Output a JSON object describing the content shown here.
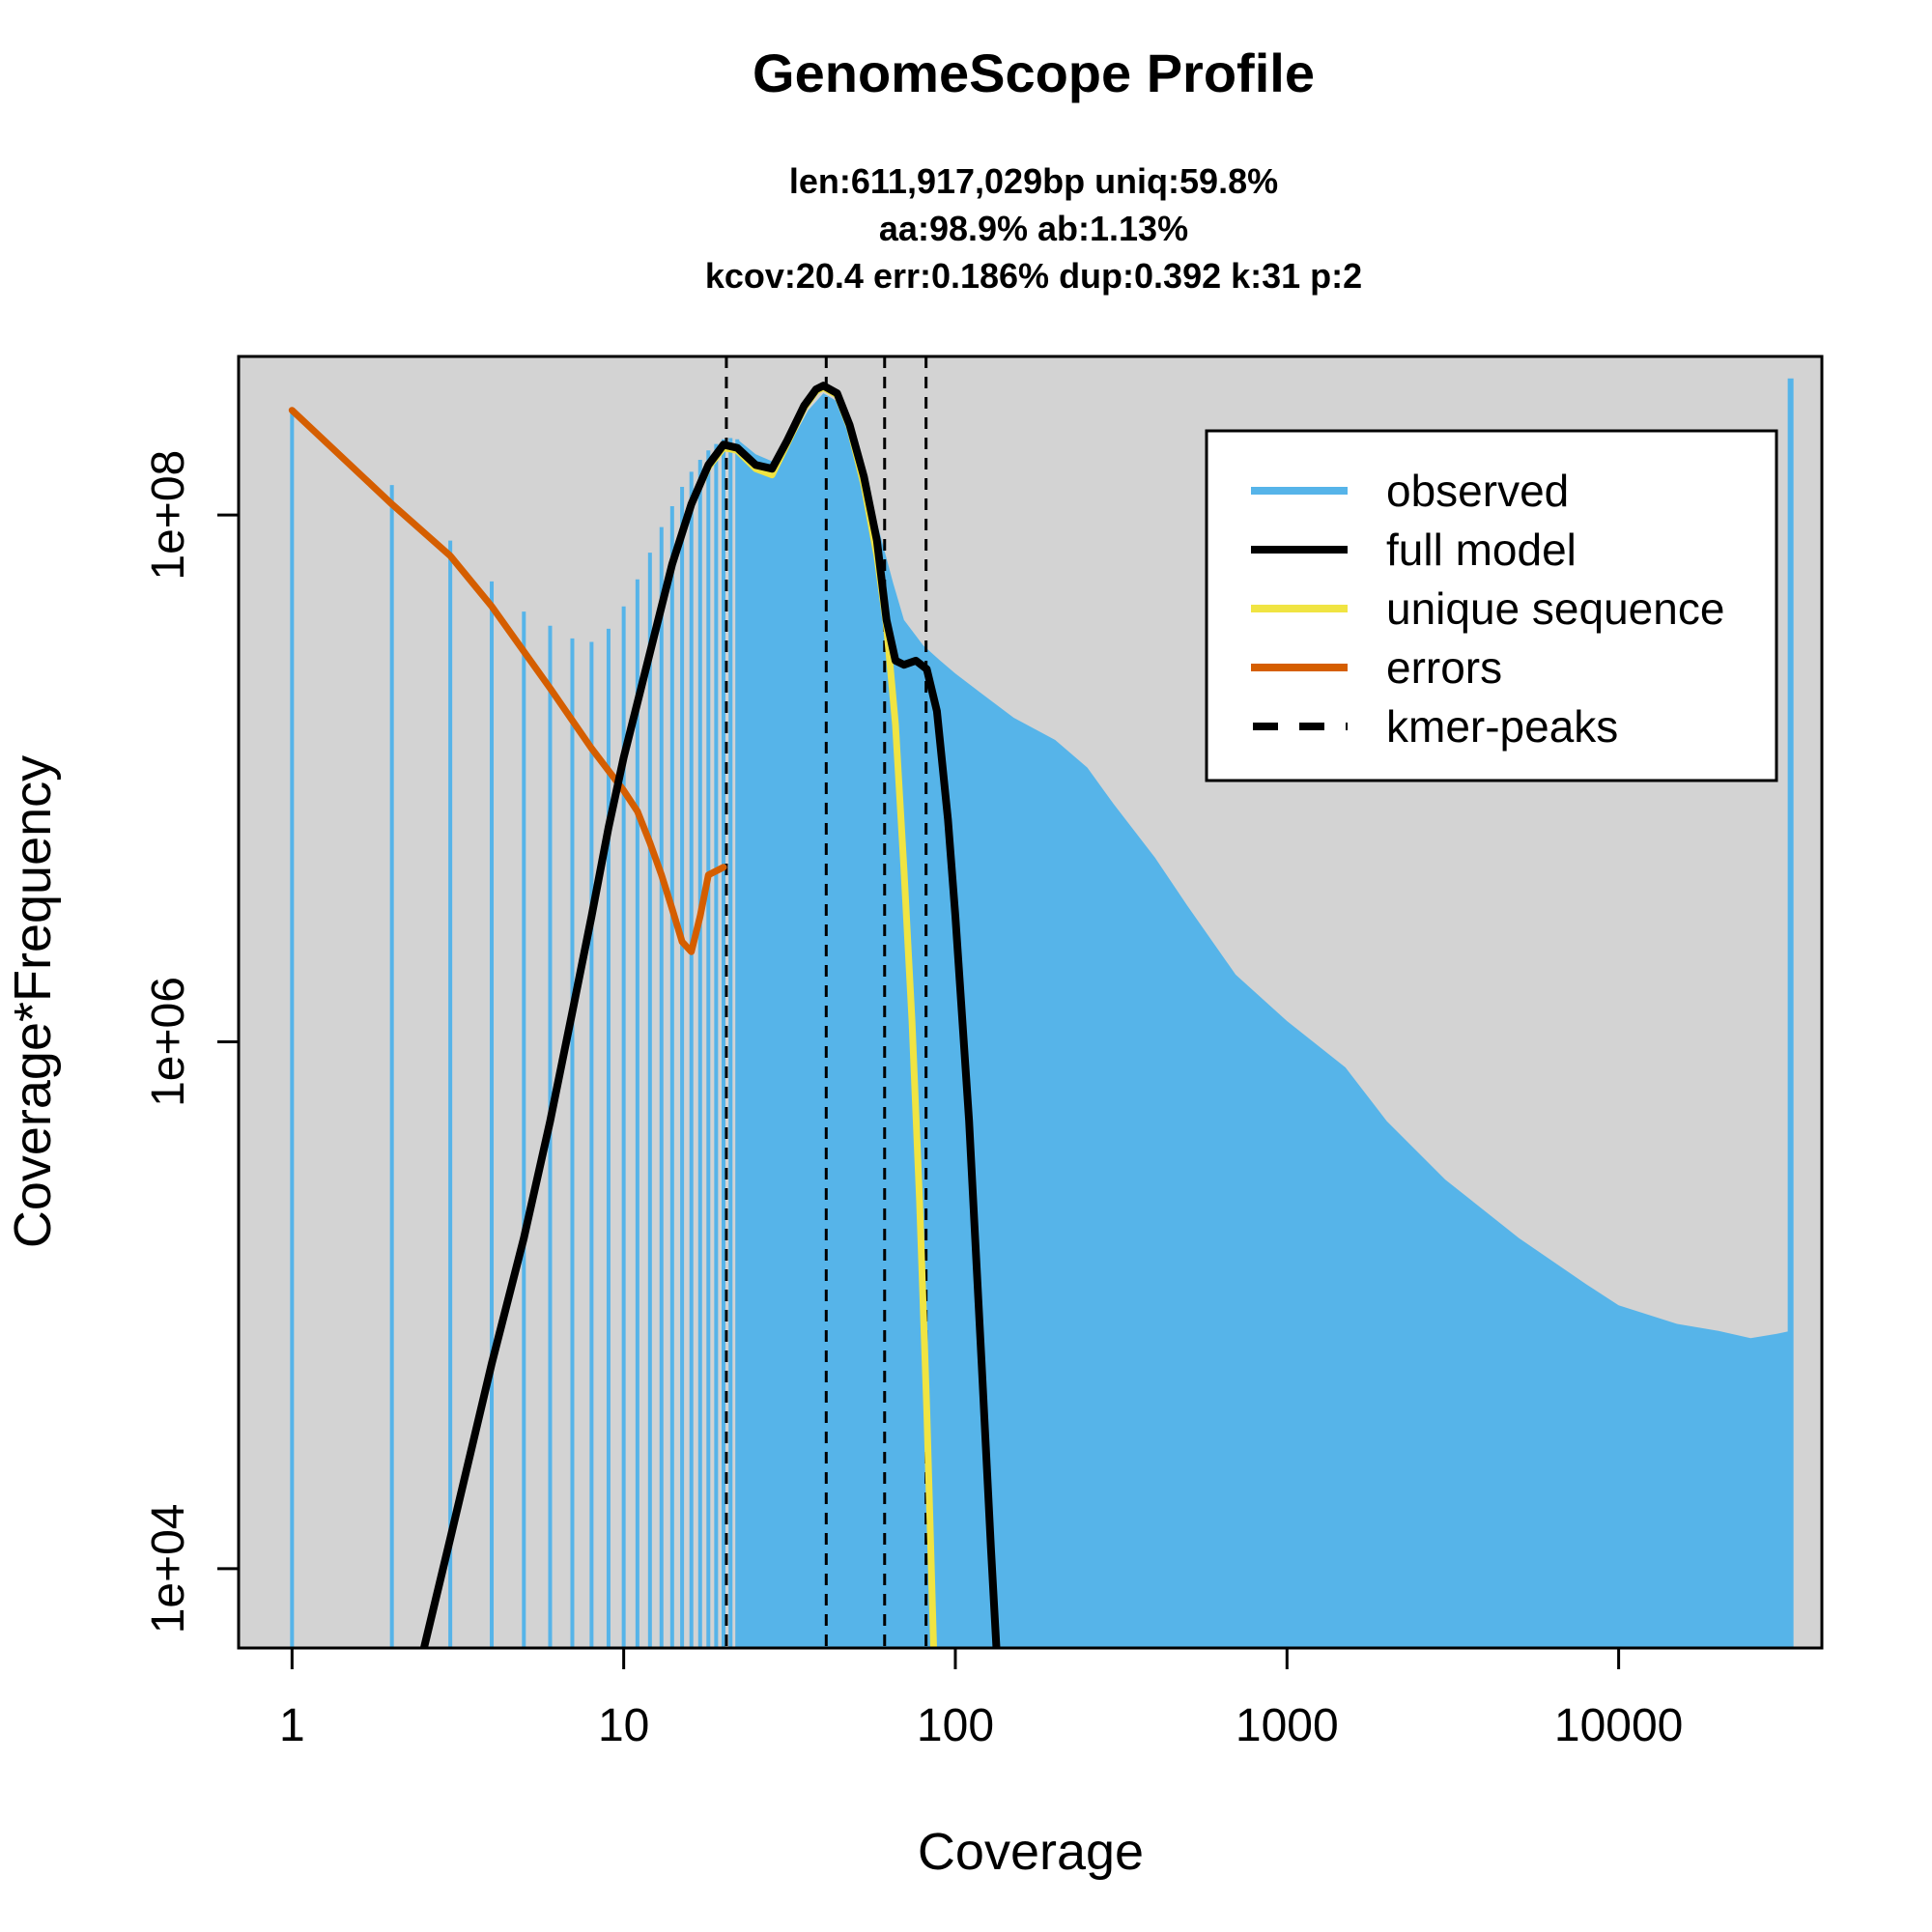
{
  "chart_data": {
    "type": "bar",
    "title": "GenomeScope Profile",
    "subtitle_lines": [
      "len:611,917,029bp uniq:59.8%",
      "aa:98.9% ab:1.13%",
      "kcov:20.4 err:0.186%  dup:0.392  k:31 p:2"
    ],
    "xlabel": "Coverage",
    "ylabel": "Coverage*Frequency",
    "x_scale": "log",
    "y_scale": "log",
    "xlim": [
      0.69,
      41000
    ],
    "ylim": [
      5000,
      400000000
    ],
    "x_ticks": [
      1,
      10,
      100,
      1000,
      10000
    ],
    "x_tick_labels": [
      "1",
      "10",
      "100",
      "1000",
      "10000"
    ],
    "y_ticks": [
      10000,
      1000000,
      100000000
    ],
    "y_tick_labels": [
      "1e+04",
      "1e+06",
      "1e+08"
    ],
    "grid": false,
    "background": "#d3d3d3",
    "legend_position": "top-right",
    "legend": [
      {
        "label": "observed",
        "color": "#56b4e9",
        "style": "solid"
      },
      {
        "label": "full model",
        "color": "#000000",
        "style": "solid"
      },
      {
        "label": "unique sequence",
        "color": "#f0e442",
        "style": "solid"
      },
      {
        "label": "errors",
        "color": "#d55e00",
        "style": "solid"
      },
      {
        "label": "kmer-peaks",
        "color": "#000000",
        "style": "dashed"
      }
    ],
    "kmer_peaks": [
      20.4,
      40.8,
      61.2,
      81.6
    ],
    "observed": {
      "color": "#56b4e9",
      "discrete_bars": [
        [
          1,
          250000000
        ],
        [
          2,
          130000000
        ],
        [
          3,
          80000000
        ],
        [
          4,
          56000000
        ],
        [
          5,
          43000000
        ],
        [
          6,
          38000000
        ],
        [
          7,
          34000000
        ],
        [
          8,
          33000000
        ],
        [
          9,
          37000000
        ],
        [
          10,
          45000000
        ],
        [
          11,
          57000000
        ],
        [
          12,
          72000000
        ],
        [
          13,
          90000000
        ],
        [
          14,
          108000000
        ],
        [
          15,
          128000000
        ],
        [
          16,
          146000000
        ],
        [
          17,
          162000000
        ],
        [
          18,
          176000000
        ],
        [
          19,
          186000000
        ],
        [
          20,
          194000000
        ],
        [
          21,
          196000000
        ],
        [
          22,
          194000000
        ]
      ],
      "envelope": [
        [
          22,
          194000000
        ],
        [
          25,
          170000000
        ],
        [
          28,
          160000000
        ],
        [
          32,
          190000000
        ],
        [
          36,
          250000000
        ],
        [
          40,
          290000000
        ],
        [
          44,
          270000000
        ],
        [
          50,
          180000000
        ],
        [
          56,
          110000000
        ],
        [
          60,
          80000000
        ],
        [
          65,
          55000000
        ],
        [
          70,
          40000000
        ],
        [
          80,
          32000000
        ],
        [
          90,
          28000000
        ],
        [
          100,
          25000000
        ],
        [
          120,
          21000000
        ],
        [
          150,
          17000000
        ],
        [
          200,
          14000000
        ],
        [
          250,
          11000000
        ],
        [
          300,
          8000000
        ],
        [
          400,
          5000000
        ],
        [
          500,
          3300000
        ],
        [
          700,
          1800000
        ],
        [
          1000,
          1200000
        ],
        [
          1500,
          800000
        ],
        [
          2000,
          500000
        ],
        [
          3000,
          300000
        ],
        [
          5000,
          180000
        ],
        [
          8000,
          120000
        ],
        [
          10000,
          100000
        ],
        [
          15000,
          85000
        ],
        [
          20000,
          80000
        ],
        [
          25000,
          75000
        ],
        [
          30000,
          78000
        ],
        [
          33000,
          80000
        ]
      ],
      "last_bar": [
        33000,
        330000000
      ]
    },
    "full_model": [
      [
        2.5,
        5000
      ],
      [
        3,
        13000
      ],
      [
        4,
        60000
      ],
      [
        5,
        180000
      ],
      [
        6,
        500000
      ],
      [
        7,
        1300000
      ],
      [
        8,
        3000000
      ],
      [
        9,
        6500000
      ],
      [
        10,
        12000000
      ],
      [
        12,
        30000000
      ],
      [
        14,
        65000000
      ],
      [
        16,
        110000000
      ],
      [
        18,
        155000000
      ],
      [
        20,
        185000000
      ],
      [
        22,
        180000000
      ],
      [
        25,
        155000000
      ],
      [
        28,
        150000000
      ],
      [
        31,
        190000000
      ],
      [
        35,
        260000000
      ],
      [
        38,
        300000000
      ],
      [
        40,
        310000000
      ],
      [
        44,
        290000000
      ],
      [
        48,
        220000000
      ],
      [
        53,
        140000000
      ],
      [
        58,
        80000000
      ],
      [
        62,
        40000000
      ],
      [
        66,
        28000000
      ],
      [
        70,
        27000000
      ],
      [
        76,
        28000000
      ],
      [
        82,
        26000000
      ],
      [
        88,
        18000000
      ],
      [
        95,
        7000000
      ],
      [
        100,
        3000000
      ],
      [
        110,
        500000
      ],
      [
        120,
        60000
      ],
      [
        128,
        12000
      ],
      [
        133,
        5000
      ]
    ],
    "unique_sequence": [
      [
        10,
        12000000
      ],
      [
        12,
        30000000
      ],
      [
        14,
        65000000
      ],
      [
        16,
        110000000
      ],
      [
        18,
        152000000
      ],
      [
        20,
        180000000
      ],
      [
        22,
        176000000
      ],
      [
        25,
        150000000
      ],
      [
        28,
        142000000
      ],
      [
        31,
        185000000
      ],
      [
        35,
        255000000
      ],
      [
        38,
        295000000
      ],
      [
        40,
        305000000
      ],
      [
        44,
        285000000
      ],
      [
        48,
        215000000
      ],
      [
        53,
        130000000
      ],
      [
        58,
        70000000
      ],
      [
        62,
        38000000
      ],
      [
        66,
        16000000
      ],
      [
        70,
        4500000
      ],
      [
        74,
        1200000
      ],
      [
        78,
        250000
      ],
      [
        82,
        40000
      ],
      [
        86,
        5000
      ]
    ],
    "errors": [
      [
        1,
        250000000
      ],
      [
        2,
        110000000
      ],
      [
        3,
        70000000
      ],
      [
        4,
        45000000
      ],
      [
        6,
        22000000
      ],
      [
        8,
        13000000
      ],
      [
        10,
        9000000
      ],
      [
        11,
        7500000
      ],
      [
        12,
        5700000
      ],
      [
        13,
        4300000
      ],
      [
        14,
        3200000
      ],
      [
        15,
        2400000
      ],
      [
        16,
        2200000
      ],
      [
        17,
        3000000
      ],
      [
        18,
        4300000
      ],
      [
        20,
        4600000
      ]
    ]
  }
}
